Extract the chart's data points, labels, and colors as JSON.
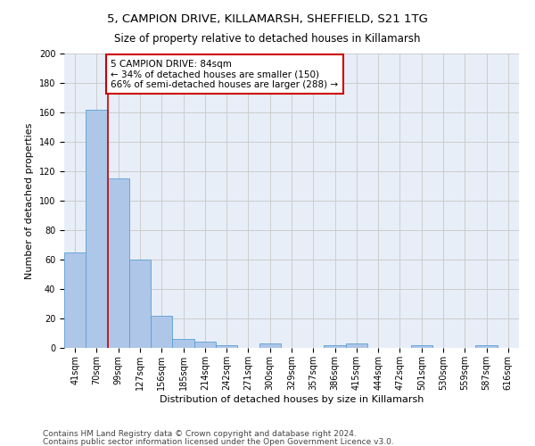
{
  "title_line1": "5, CAMPION DRIVE, KILLAMARSH, SHEFFIELD, S21 1TG",
  "title_line2": "Size of property relative to detached houses in Killamarsh",
  "xlabel": "Distribution of detached houses by size in Killamarsh",
  "ylabel": "Number of detached properties",
  "categories": [
    "41sqm",
    "70sqm",
    "99sqm",
    "127sqm",
    "156sqm",
    "185sqm",
    "214sqm",
    "242sqm",
    "271sqm",
    "300sqm",
    "329sqm",
    "357sqm",
    "386sqm",
    "415sqm",
    "444sqm",
    "472sqm",
    "501sqm",
    "530sqm",
    "559sqm",
    "587sqm",
    "616sqm"
  ],
  "values": [
    65,
    162,
    115,
    60,
    22,
    6,
    4,
    2,
    0,
    3,
    0,
    0,
    2,
    3,
    0,
    0,
    2,
    0,
    0,
    2,
    0
  ],
  "bar_color": "#aec6e8",
  "bar_edge_color": "#5a9fd4",
  "property_line_x": 1.5,
  "annotation_text": "5 CAMPION DRIVE: 84sqm\n← 34% of detached houses are smaller (150)\n66% of semi-detached houses are larger (288) →",
  "annotation_box_color": "#ffffff",
  "annotation_box_edge_color": "#cc0000",
  "vline_color": "#cc0000",
  "ylim": [
    0,
    200
  ],
  "yticks": [
    0,
    20,
    40,
    60,
    80,
    100,
    120,
    140,
    160,
    180,
    200
  ],
  "grid_color": "#cccccc",
  "bg_color": "#e8eef8",
  "footer_line1": "Contains HM Land Registry data © Crown copyright and database right 2024.",
  "footer_line2": "Contains public sector information licensed under the Open Government Licence v3.0.",
  "title_fontsize": 9.5,
  "subtitle_fontsize": 8.5,
  "axis_label_fontsize": 8,
  "tick_fontsize": 7,
  "annotation_fontsize": 7.5,
  "footer_fontsize": 6.5
}
